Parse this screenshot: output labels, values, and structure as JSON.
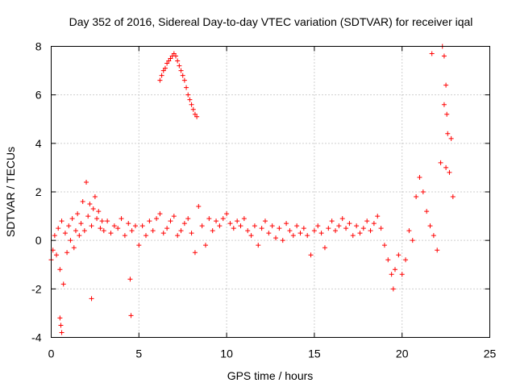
{
  "chart_data": {
    "type": "scatter",
    "title": "Day 352 of 2016, Sidereal Day-to-day VTEC variation (SDTVAR) for receiver iqal",
    "xlabel": "GPS time / hours",
    "ylabel": "SDTVAR / TECUs",
    "xlim": [
      0,
      25
    ],
    "ylim": [
      -4,
      8
    ],
    "xticks": [
      0,
      5,
      10,
      15,
      20,
      25
    ],
    "yticks": [
      -4,
      -2,
      0,
      2,
      4,
      6,
      8
    ],
    "xtick_labels": [
      "0",
      "5",
      "10",
      "15",
      "20",
      "25"
    ],
    "ytick_labels": [
      "-4",
      "-2",
      "0",
      "2",
      "4",
      "6",
      "8"
    ],
    "grid": true,
    "marker": "+",
    "color": "#ff0000",
    "series": [
      {
        "name": "SDTVAR",
        "x": [
          0.0,
          0.1,
          0.2,
          0.3,
          0.4,
          0.5,
          0.6,
          0.7,
          0.8,
          0.9,
          1.0,
          1.1,
          1.2,
          1.3,
          1.4,
          1.5,
          1.6,
          1.7,
          1.8,
          1.9,
          2.0,
          2.1,
          2.2,
          2.3,
          2.4,
          2.5,
          2.6,
          2.7,
          2.8,
          2.9,
          3.0,
          3.2,
          3.4,
          3.6,
          3.8,
          4.0,
          4.2,
          4.4,
          4.6,
          4.8,
          5.0,
          5.2,
          5.4,
          5.6,
          5.8,
          6.0,
          6.2,
          6.4,
          6.6,
          6.8,
          7.0,
          7.2,
          7.4,
          7.6,
          7.8,
          8.0,
          8.2,
          8.4,
          8.6,
          8.8,
          9.0,
          9.2,
          9.4,
          9.6,
          9.8,
          10.0,
          10.2,
          10.4,
          10.6,
          10.8,
          11.0,
          11.2,
          11.4,
          11.6,
          11.8,
          12.0,
          12.2,
          12.4,
          12.6,
          12.8,
          13.0,
          13.2,
          13.4,
          13.6,
          13.8,
          14.0,
          14.2,
          14.4,
          14.6,
          14.8,
          15.0,
          15.2,
          15.4,
          15.6,
          15.8,
          16.0,
          16.2,
          16.4,
          16.6,
          16.8,
          17.0,
          17.2,
          17.4,
          17.6,
          17.8,
          18.0,
          18.2,
          18.4,
          18.6,
          18.8,
          19.0,
          19.2,
          19.4,
          19.5,
          19.6,
          19.8,
          20.0,
          20.2,
          20.4,
          20.6,
          20.8,
          21.0,
          21.2,
          21.4,
          21.6,
          21.8,
          22.0,
          22.2,
          22.4,
          22.5,
          22.6,
          22.7,
          22.8,
          22.9
        ],
        "y": [
          -0.8,
          -0.4,
          0.2,
          -0.6,
          0.5,
          -1.2,
          0.8,
          -1.8,
          0.3,
          -0.5,
          0.6,
          0.0,
          0.9,
          -0.3,
          0.4,
          1.1,
          0.2,
          0.7,
          1.6,
          0.4,
          2.4,
          1.0,
          1.5,
          0.6,
          1.3,
          1.8,
          0.9,
          1.2,
          0.5,
          0.8,
          0.4,
          0.8,
          0.3,
          0.6,
          0.5,
          0.9,
          0.2,
          0.7,
          0.4,
          0.6,
          -0.2,
          0.6,
          0.2,
          0.8,
          0.4,
          0.9,
          1.1,
          0.3,
          0.5,
          0.8,
          1.0,
          0.2,
          0.4,
          0.7,
          0.9,
          0.3,
          -0.5,
          1.4,
          0.6,
          -0.2,
          0.9,
          0.4,
          0.8,
          0.6,
          0.9,
          1.1,
          0.7,
          0.5,
          0.8,
          0.6,
          0.9,
          0.4,
          0.2,
          0.6,
          -0.2,
          0.5,
          0.8,
          0.3,
          0.6,
          0.1,
          0.5,
          0.0,
          0.7,
          0.4,
          0.2,
          0.6,
          0.3,
          0.5,
          0.2,
          -0.6,
          0.4,
          0.6,
          0.3,
          -0.3,
          0.5,
          0.8,
          0.4,
          0.6,
          0.9,
          0.5,
          0.7,
          0.2,
          0.6,
          0.3,
          0.5,
          0.8,
          0.4,
          0.7,
          1.0,
          0.5,
          -0.2,
          -0.8,
          -1.4,
          -2.0,
          -1.2,
          -0.6,
          -1.4,
          -0.8,
          0.4,
          0.0,
          1.8,
          2.6,
          2.0,
          1.2,
          0.6,
          0.2,
          -0.4,
          3.2,
          5.6,
          3.0,
          4.4,
          2.8,
          4.2,
          1.8
        ],
        "x2": [
          6.2,
          6.3,
          6.4,
          6.5,
          6.6,
          6.7,
          6.8,
          6.9,
          7.0,
          7.1,
          7.2,
          7.3,
          7.4,
          7.5,
          7.6,
          7.7,
          7.8,
          7.9,
          8.0,
          8.1,
          8.2,
          8.3
        ],
        "y2": [
          6.6,
          6.8,
          7.0,
          7.1,
          7.3,
          7.4,
          7.5,
          7.6,
          7.7,
          7.6,
          7.4,
          7.2,
          7.0,
          6.8,
          6.6,
          6.3,
          6.0,
          5.8,
          5.6,
          5.4,
          5.2,
          5.1
        ],
        "x3": [
          0.5,
          0.55,
          0.6,
          2.3,
          4.5,
          4.55,
          21.7,
          22.3,
          22.4,
          22.5,
          22.55
        ],
        "y3": [
          -3.2,
          -3.5,
          -3.8,
          -2.4,
          -1.6,
          -3.1,
          7.7,
          8.0,
          7.6,
          6.4,
          5.2
        ]
      }
    ]
  }
}
